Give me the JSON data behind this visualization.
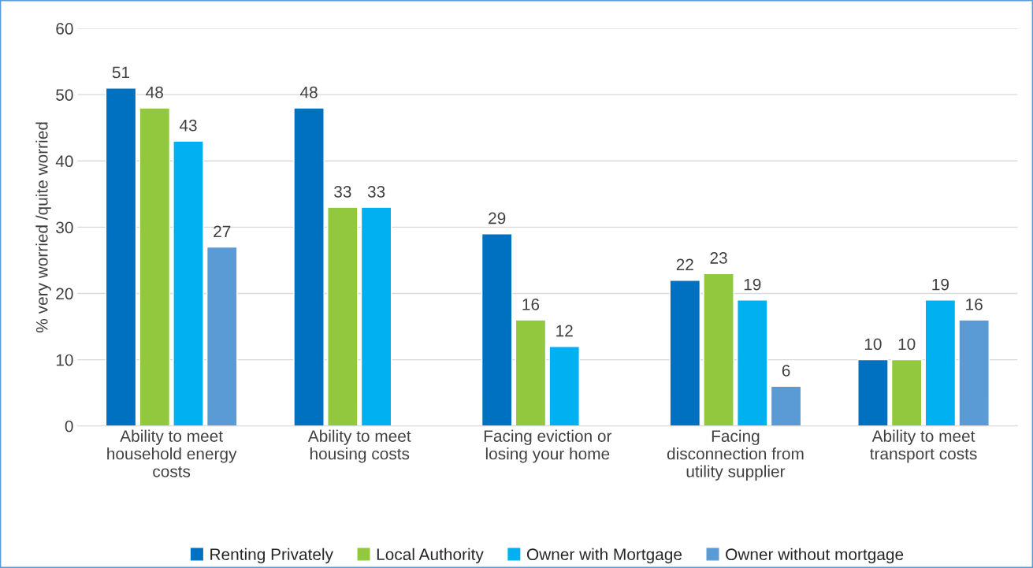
{
  "chart_data": {
    "type": "bar",
    "ylabel": "% very worried /quite worried",
    "categories": [
      "Ability to meet\nhousehold energy\ncosts",
      "Ability to meet\nhousing costs",
      "Facing eviction or\nlosing your home",
      "Facing\ndisconnection from\nutility supplier",
      "Ability to meet\ntransport costs"
    ],
    "series": [
      {
        "name": "Renting Privately",
        "color": "#0070c0",
        "values": [
          51,
          48,
          29,
          22,
          10
        ]
      },
      {
        "name": "Local Authority",
        "color": "#92c83e",
        "values": [
          48,
          33,
          16,
          23,
          10
        ]
      },
      {
        "name": "Owner with Mortgage",
        "color": "#00b0f0",
        "values": [
          43,
          33,
          12,
          19,
          19
        ]
      },
      {
        "name": "Owner without mortgage",
        "color": "#5b9bd5",
        "values": [
          27,
          null,
          null,
          6,
          16
        ]
      }
    ],
    "ylim": [
      0,
      60
    ],
    "yticks": [
      0,
      10,
      20,
      30,
      40,
      50,
      60
    ],
    "grid": "y",
    "legend": "bottom",
    "data_labels": true
  }
}
